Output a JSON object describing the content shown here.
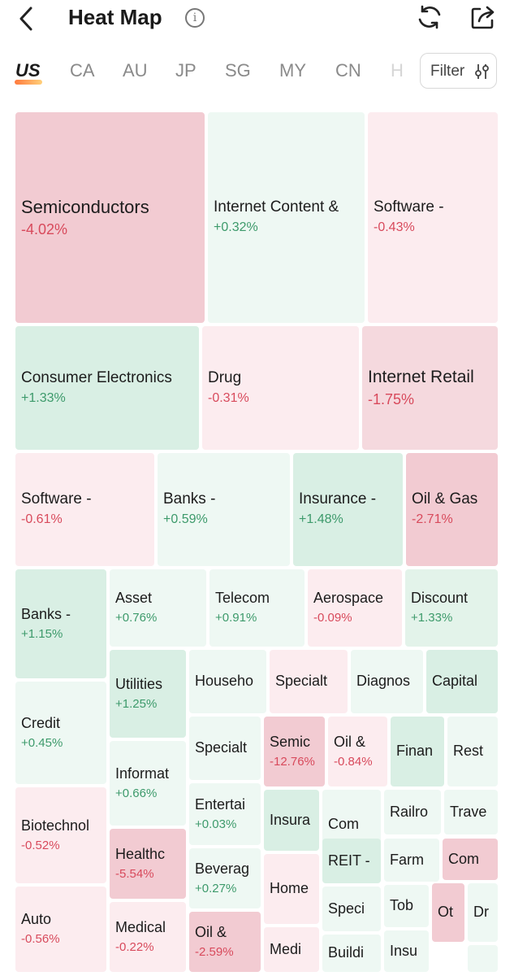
{
  "header": {
    "title": "Heat Map",
    "info_symbol": "i",
    "back_icon": "chevron-left-icon",
    "refresh_icon": "refresh-icon",
    "share_icon": "share-icon"
  },
  "markets": {
    "tabs": [
      "US",
      "CA",
      "AU",
      "JP",
      "SG",
      "MY",
      "CN",
      "H"
    ],
    "active": "US",
    "filter_label": "Filter",
    "filter_icon": "sliders-icon"
  },
  "colors": {
    "red_strong": "#f2cbd2",
    "red_mid": "#f5d9de",
    "red_light": "#fcecef",
    "green_strong": "#d9efe4",
    "green_mid": "#e3f3ea",
    "green_light": "#eef8f3",
    "pos_text": "#3d9a6b",
    "neg_text": "#d84a5c"
  },
  "tiles": [
    {
      "name": "Semiconductors",
      "change": "-4.02%"
    },
    {
      "name": "Internet Content &",
      "change": "+0.32%"
    },
    {
      "name": "Software -",
      "change": "-0.43%"
    },
    {
      "name": "Consumer Electronics",
      "change": "+1.33%"
    },
    {
      "name": "Drug",
      "change": "-0.31%"
    },
    {
      "name": "Internet Retail",
      "change": "-1.75%"
    },
    {
      "name": "Software -",
      "change": "-0.61%"
    },
    {
      "name": "Banks -",
      "change": "+0.59%"
    },
    {
      "name": "Insurance -",
      "change": "+1.48%"
    },
    {
      "name": "Oil & Gas",
      "change": "-2.71%"
    },
    {
      "name": "Banks -",
      "change": "+1.15%"
    },
    {
      "name": "Asset",
      "change": "+0.76%"
    },
    {
      "name": "Telecom",
      "change": "+0.91%"
    },
    {
      "name": "Aerospace",
      "change": "-0.09%"
    },
    {
      "name": "Discount",
      "change": "+1.33%"
    },
    {
      "name": "Credit",
      "change": "+0.45%"
    },
    {
      "name": "Utilities",
      "change": "+1.25%"
    },
    {
      "name": "Househo",
      "change": ""
    },
    {
      "name": "Specialt",
      "change": ""
    },
    {
      "name": "Diagnos",
      "change": ""
    },
    {
      "name": "Capital",
      "change": ""
    },
    {
      "name": "Informat",
      "change": "+0.66%"
    },
    {
      "name": "Specialt",
      "change": ""
    },
    {
      "name": "Semic",
      "change": "-12.76%"
    },
    {
      "name": "Oil &",
      "change": "-0.84%"
    },
    {
      "name": "Finan",
      "change": ""
    },
    {
      "name": "Rest",
      "change": ""
    },
    {
      "name": "Biotechnol",
      "change": "-0.52%"
    },
    {
      "name": "Entertai",
      "change": "+0.03%"
    },
    {
      "name": "Insura",
      "change": ""
    },
    {
      "name": "Com",
      "change": ""
    },
    {
      "name": "Railro",
      "change": ""
    },
    {
      "name": "Trave",
      "change": ""
    },
    {
      "name": "Healthc",
      "change": "-5.54%"
    },
    {
      "name": "REIT -",
      "change": ""
    },
    {
      "name": "Farm",
      "change": ""
    },
    {
      "name": "Com",
      "change": ""
    },
    {
      "name": "Beverag",
      "change": "+0.27%"
    },
    {
      "name": "Home",
      "change": ""
    },
    {
      "name": "Auto",
      "change": "-0.56%"
    },
    {
      "name": "Speci",
      "change": ""
    },
    {
      "name": "Tob",
      "change": ""
    },
    {
      "name": "Ot",
      "change": ""
    },
    {
      "name": "Dr",
      "change": ""
    },
    {
      "name": "Medical",
      "change": "-0.22%"
    },
    {
      "name": "Oil &",
      "change": "-2.59%"
    },
    {
      "name": "Medi",
      "change": ""
    },
    {
      "name": "Buildi",
      "change": ""
    },
    {
      "name": "Insu",
      "change": ""
    },
    {
      "name": "",
      "change": ""
    }
  ]
}
